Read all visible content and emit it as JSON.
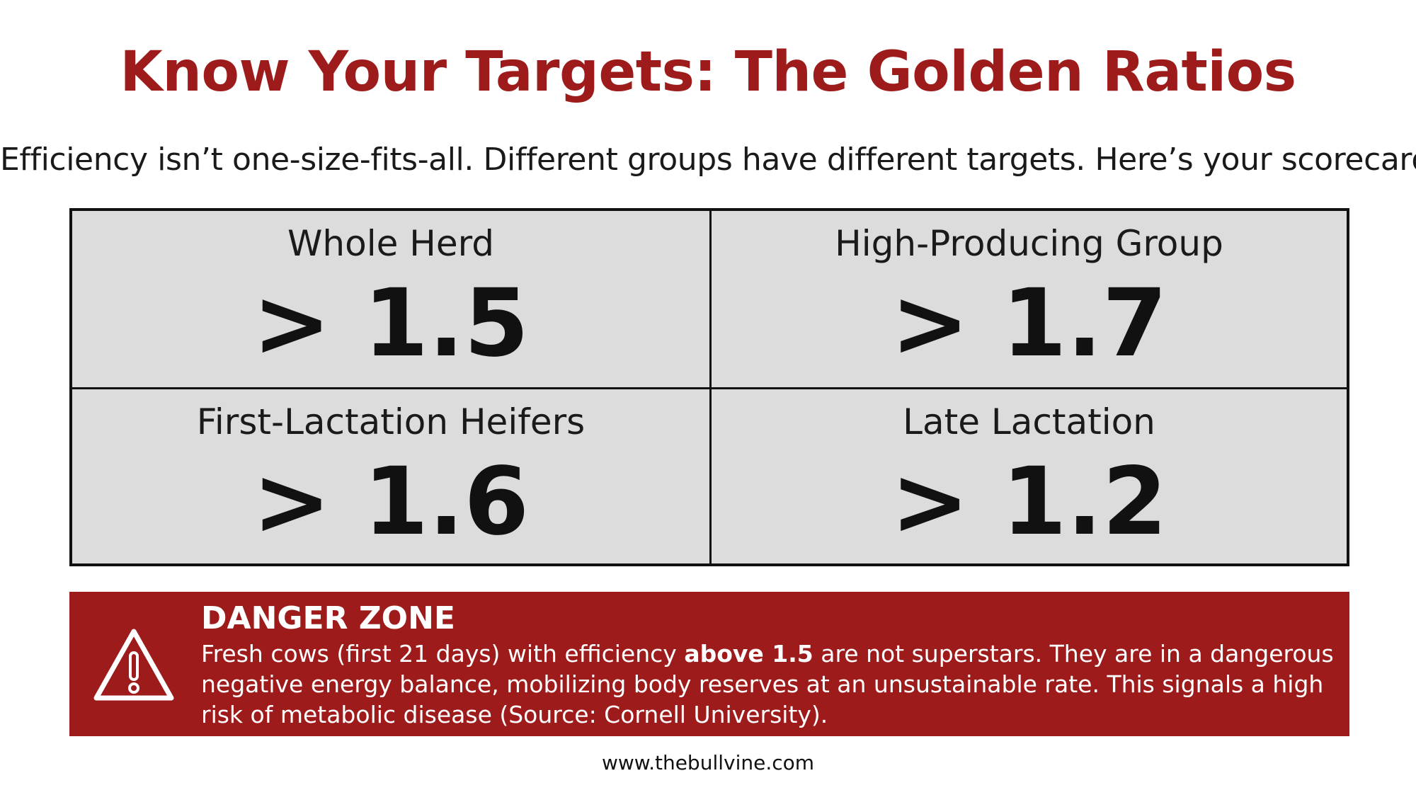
{
  "title": "Know Your Targets: The Golden Ratios",
  "subtitle": "Efficiency isn’t one-size-fits-all. Different groups have different targets. Here’s your scorecard.",
  "targets": [
    {
      "label": "Whole Herd",
      "value": "> 1.5"
    },
    {
      "label": "High-Producing Group",
      "value": "> 1.7"
    },
    {
      "label": "First-Lactation Heifers",
      "value": "> 1.6"
    },
    {
      "label": "Late Lactation",
      "value": "> 1.2"
    }
  ],
  "danger": {
    "icon": "warning-icon",
    "heading": "DANGER ZONE",
    "text_before": "Fresh cows (first 21 days) with efficiency ",
    "text_bold": "above 1.5",
    "text_after": " are not superstars. They are in a dangerous negative energy balance, mobilizing body reserves at an unsustainable rate. This signals a high risk of metabolic disease (Source: Cornell University)."
  },
  "footer": "www.thebullvine.com",
  "colors": {
    "accent": "#9e1b1b",
    "panel": "#dcdcdc",
    "text": "#111111"
  }
}
